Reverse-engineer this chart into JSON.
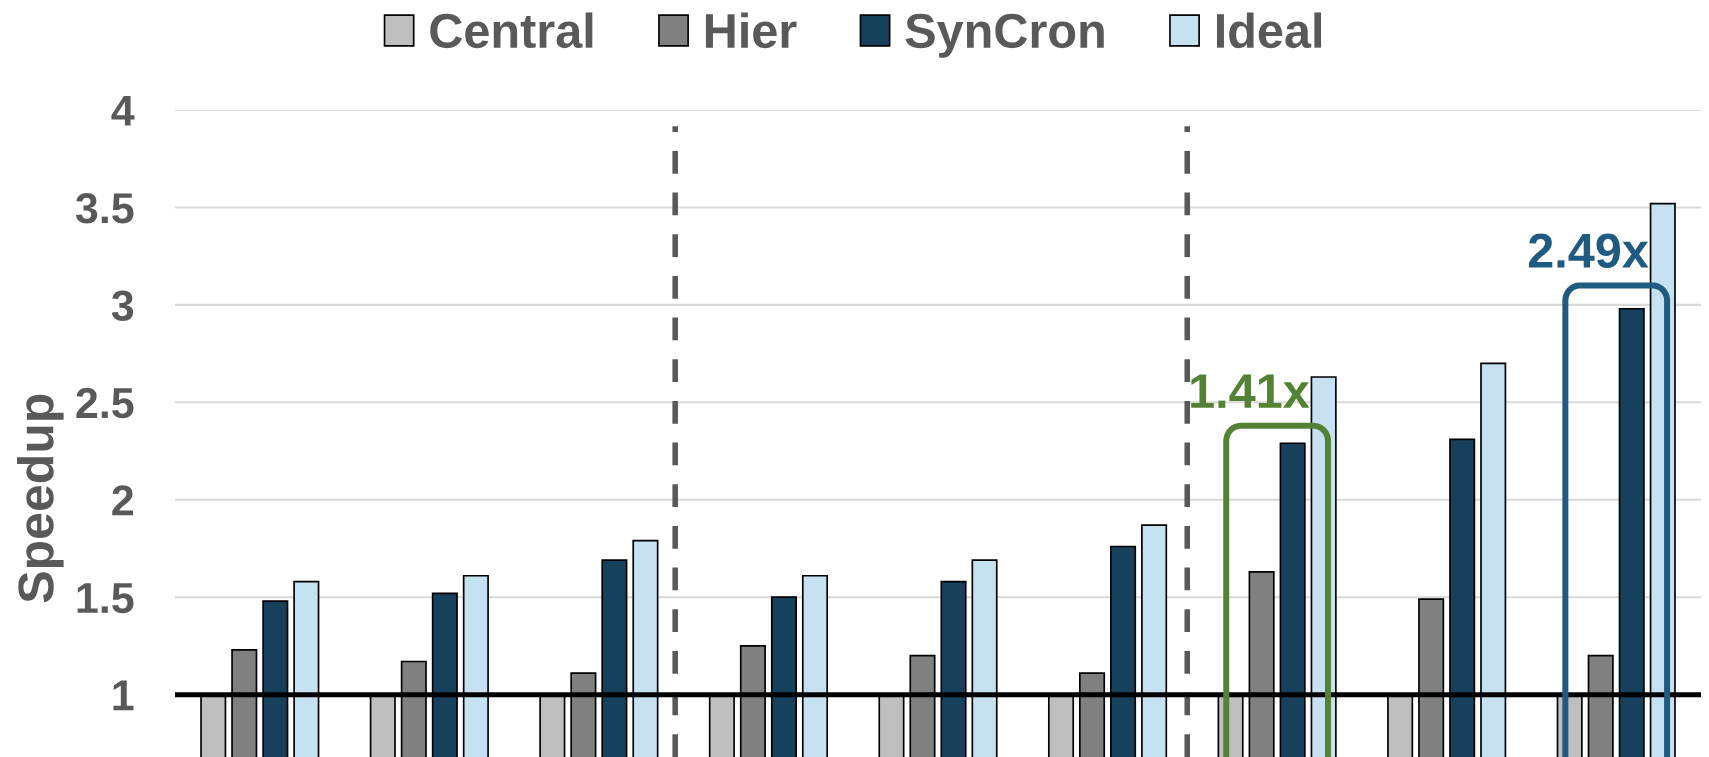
{
  "chart_data": {
    "type": "bar",
    "ylabel": "Speedup",
    "categories": [
      null,
      null,
      null,
      null,
      null,
      null,
      null,
      null,
      null
    ],
    "series": [
      {
        "name": "Central",
        "color": "#bfbfbf",
        "values": [
          1,
          1,
          1,
          1,
          1,
          1,
          1,
          1,
          1
        ]
      },
      {
        "name": "Hier",
        "color": "#808080",
        "values": [
          1.23,
          1.17,
          1.11,
          1.25,
          1.2,
          1.11,
          1.63,
          1.49,
          1.2
        ]
      },
      {
        "name": "SynCron",
        "color": "#17405d",
        "values": [
          1.48,
          1.52,
          1.69,
          1.5,
          1.58,
          1.76,
          2.29,
          2.31,
          2.98
        ]
      },
      {
        "name": "Ideal",
        "color": "#c5e1f2",
        "values": [
          1.58,
          1.61,
          1.79,
          1.61,
          1.69,
          1.87,
          2.63,
          2.7,
          3.52
        ]
      }
    ],
    "ylim": [
      0.68,
      4
    ],
    "yticks": [
      1,
      1.5,
      2,
      2.5,
      3,
      3.5,
      4
    ],
    "grid": "y",
    "legend": "top",
    "ref_lines": [
      {
        "axis": "y",
        "value": 1,
        "color": "#000000",
        "line_style": "solid"
      }
    ],
    "annotations": [
      "1.41x",
      "2.49x"
    ]
  }
}
